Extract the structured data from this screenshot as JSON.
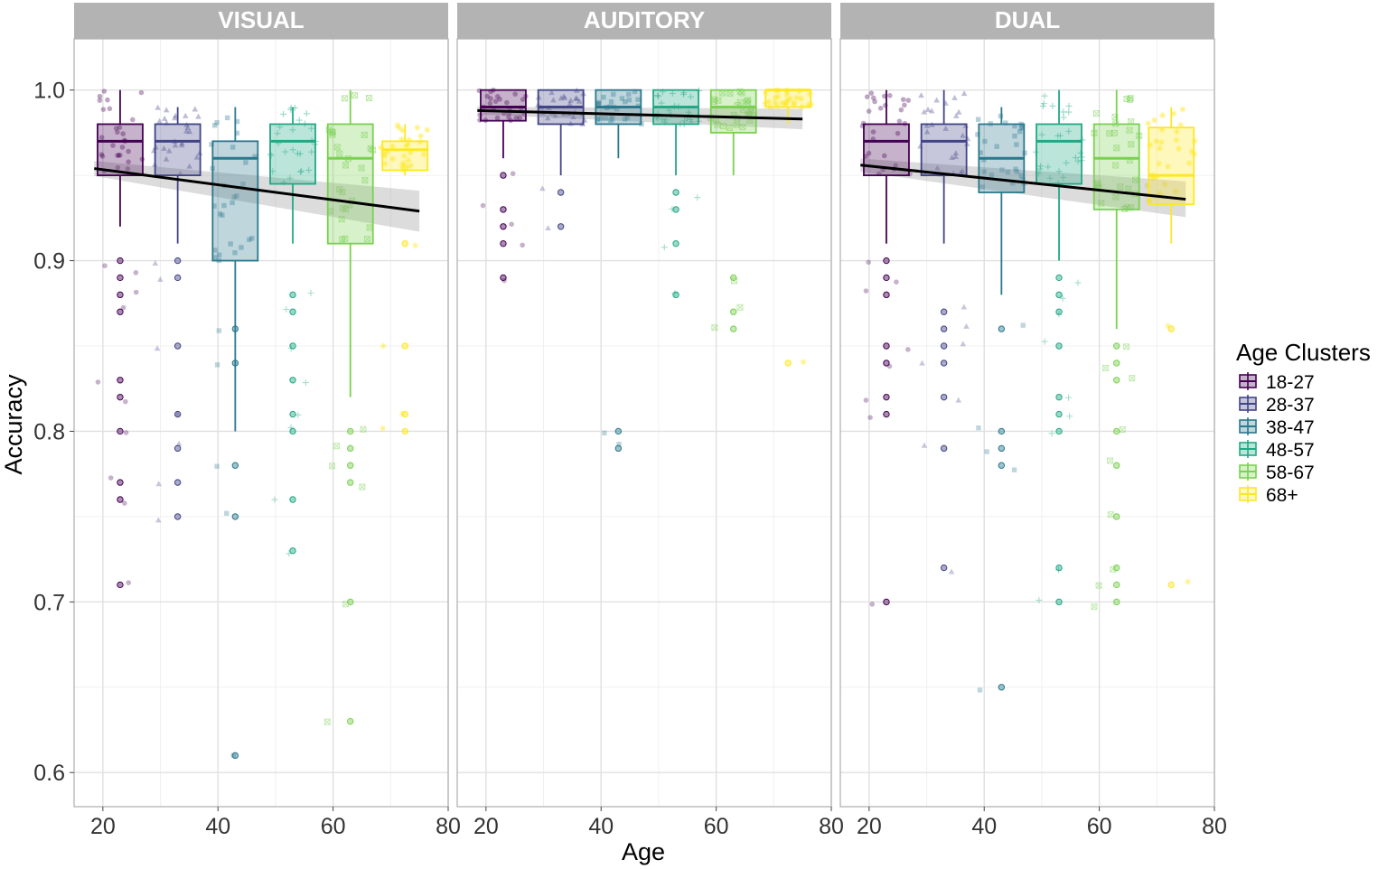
{
  "chart_data": {
    "type": "boxplot",
    "xlabel": "Age",
    "ylabel": "Accuracy",
    "xlim": [
      15,
      80
    ],
    "ylim": [
      0.58,
      1.03
    ],
    "x_ticks": [
      "20",
      "40",
      "60",
      "80"
    ],
    "y_ticks": [
      "0.6",
      "0.7",
      "0.8",
      "0.9",
      "1.0"
    ],
    "legend": {
      "title": "Age Clusters",
      "position": "right",
      "entries": [
        {
          "label": "18-27",
          "color": "#440154"
        },
        {
          "label": "28-37",
          "color": "#414487"
        },
        {
          "label": "38-47",
          "color": "#2A788E"
        },
        {
          "label": "48-57",
          "color": "#22A884"
        },
        {
          "label": "58-67",
          "color": "#7AD151"
        },
        {
          "label": "68+",
          "color": "#FDE725"
        }
      ]
    },
    "panels": [
      {
        "title": "VISUAL",
        "boxes": [
          {
            "cluster": "18-27",
            "x": 23,
            "q1": 0.95,
            "median": 0.97,
            "q3": 0.98,
            "lower": 0.92,
            "upper": 1.0
          },
          {
            "cluster": "28-37",
            "x": 33,
            "q1": 0.95,
            "median": 0.97,
            "q3": 0.98,
            "lower": 0.91,
            "upper": 0.99
          },
          {
            "cluster": "38-47",
            "x": 43,
            "q1": 0.9,
            "median": 0.96,
            "q3": 0.97,
            "lower": 0.8,
            "upper": 0.99
          },
          {
            "cluster": "48-57",
            "x": 53,
            "q1": 0.945,
            "median": 0.97,
            "q3": 0.98,
            "lower": 0.91,
            "upper": 0.99
          },
          {
            "cluster": "58-67",
            "x": 63,
            "q1": 0.91,
            "median": 0.96,
            "q3": 0.98,
            "lower": 0.82,
            "upper": 1.0
          },
          {
            "cluster": "68+",
            "x": 72.5,
            "q1": 0.953,
            "median": 0.965,
            "q3": 0.97,
            "lower": 0.95,
            "upper": 0.98
          }
        ],
        "trend": {
          "x0": 18.5,
          "y0": 0.954,
          "x1": 75,
          "y1": 0.929,
          "ci": 0.008
        },
        "outliers": [
          {
            "cluster": "18-27",
            "values": [
              0.9,
              0.89,
              0.88,
              0.87,
              0.83,
              0.82,
              0.8,
              0.77,
              0.76,
              0.71
            ]
          },
          {
            "cluster": "28-37",
            "values": [
              0.9,
              0.89,
              0.85,
              0.81,
              0.79,
              0.77,
              0.75
            ]
          },
          {
            "cluster": "38-47",
            "values": [
              0.86,
              0.84,
              0.78,
              0.75,
              0.61
            ]
          },
          {
            "cluster": "48-57",
            "values": [
              0.88,
              0.87,
              0.85,
              0.83,
              0.81,
              0.8,
              0.76,
              0.73
            ]
          },
          {
            "cluster": "58-67",
            "values": [
              0.8,
              0.79,
              0.78,
              0.77,
              0.7,
              0.63
            ]
          },
          {
            "cluster": "68+",
            "values": [
              0.91,
              0.85,
              0.81,
              0.8
            ]
          }
        ]
      },
      {
        "title": "AUDITORY",
        "boxes": [
          {
            "cluster": "18-27",
            "x": 23,
            "q1": 0.982,
            "median": 0.99,
            "q3": 1.0,
            "lower": 0.96,
            "upper": 1.0
          },
          {
            "cluster": "28-37",
            "x": 33,
            "q1": 0.98,
            "median": 0.99,
            "q3": 1.0,
            "lower": 0.95,
            "upper": 1.0
          },
          {
            "cluster": "38-47",
            "x": 43,
            "q1": 0.98,
            "median": 0.99,
            "q3": 1.0,
            "lower": 0.96,
            "upper": 1.0
          },
          {
            "cluster": "48-57",
            "x": 53,
            "q1": 0.98,
            "median": 0.99,
            "q3": 1.0,
            "lower": 0.95,
            "upper": 1.0
          },
          {
            "cluster": "58-67",
            "x": 63,
            "q1": 0.975,
            "median": 0.99,
            "q3": 1.0,
            "lower": 0.95,
            "upper": 1.0
          },
          {
            "cluster": "68+",
            "x": 72.5,
            "q1": 0.99,
            "median": 1.0,
            "q3": 1.0,
            "lower": 0.98,
            "upper": 1.0
          }
        ],
        "trend": {
          "x0": 18.5,
          "y0": 0.988,
          "x1": 75,
          "y1": 0.983,
          "ci": 0.004
        },
        "outliers": [
          {
            "cluster": "18-27",
            "values": [
              0.95,
              0.93,
              0.92,
              0.91,
              0.89
            ]
          },
          {
            "cluster": "28-37",
            "values": [
              0.94,
              0.92
            ]
          },
          {
            "cluster": "38-47",
            "values": [
              0.8,
              0.79
            ]
          },
          {
            "cluster": "48-57",
            "values": [
              0.94,
              0.93,
              0.91,
              0.88
            ]
          },
          {
            "cluster": "58-67",
            "values": [
              0.89,
              0.87,
              0.86
            ]
          },
          {
            "cluster": "68+",
            "values": [
              0.84
            ]
          }
        ]
      },
      {
        "title": "DUAL",
        "boxes": [
          {
            "cluster": "18-27",
            "x": 23,
            "q1": 0.95,
            "median": 0.97,
            "q3": 0.98,
            "lower": 0.91,
            "upper": 1.0
          },
          {
            "cluster": "28-37",
            "x": 33,
            "q1": 0.95,
            "median": 0.97,
            "q3": 0.98,
            "lower": 0.91,
            "upper": 1.0
          },
          {
            "cluster": "38-47",
            "x": 43,
            "q1": 0.94,
            "median": 0.96,
            "q3": 0.98,
            "lower": 0.88,
            "upper": 0.99
          },
          {
            "cluster": "48-57",
            "x": 53,
            "q1": 0.945,
            "median": 0.97,
            "q3": 0.98,
            "lower": 0.9,
            "upper": 1.0
          },
          {
            "cluster": "58-67",
            "x": 63,
            "q1": 0.93,
            "median": 0.96,
            "q3": 0.98,
            "lower": 0.86,
            "upper": 1.0
          },
          {
            "cluster": "68+",
            "x": 72.5,
            "q1": 0.933,
            "median": 0.95,
            "q3": 0.978,
            "lower": 0.91,
            "upper": 0.99
          }
        ],
        "trend": {
          "x0": 18.5,
          "y0": 0.956,
          "x1": 75,
          "y1": 0.936,
          "ci": 0.007
        },
        "outliers": [
          {
            "cluster": "18-27",
            "values": [
              0.9,
              0.89,
              0.88,
              0.85,
              0.84,
              0.82,
              0.81,
              0.7
            ]
          },
          {
            "cluster": "28-37",
            "values": [
              0.87,
              0.86,
              0.85,
              0.84,
              0.82,
              0.79,
              0.72
            ]
          },
          {
            "cluster": "38-47",
            "values": [
              0.86,
              0.8,
              0.79,
              0.78,
              0.65
            ]
          },
          {
            "cluster": "48-57",
            "values": [
              0.89,
              0.88,
              0.87,
              0.85,
              0.82,
              0.81,
              0.8,
              0.72,
              0.7
            ]
          },
          {
            "cluster": "58-67",
            "values": [
              0.85,
              0.84,
              0.83,
              0.8,
              0.78,
              0.75,
              0.72,
              0.71,
              0.7
            ]
          },
          {
            "cluster": "68+",
            "values": [
              0.86,
              0.71
            ]
          }
        ]
      }
    ]
  }
}
